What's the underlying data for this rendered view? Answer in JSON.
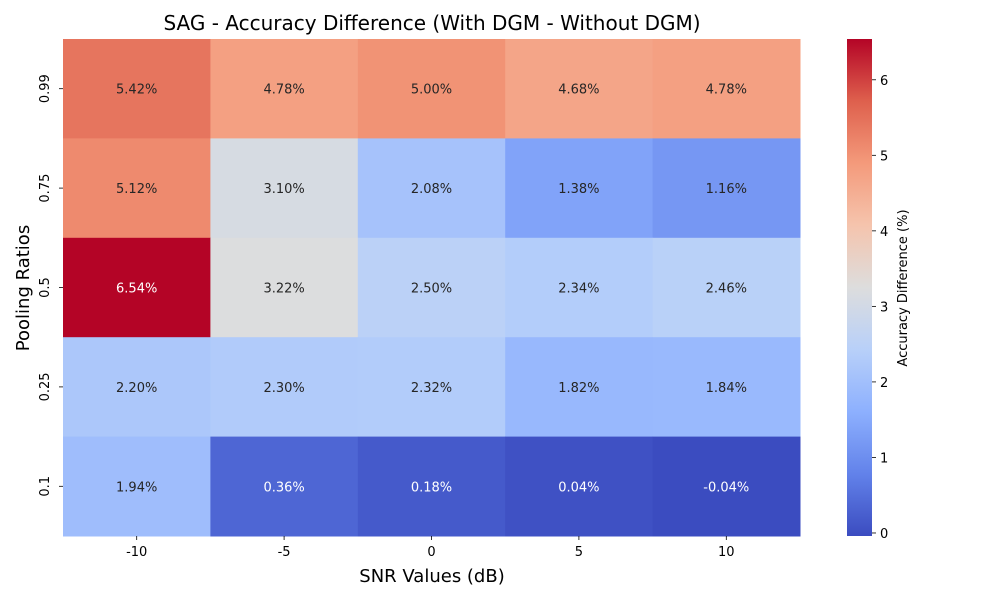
{
  "chart_data": {
    "type": "heatmap",
    "title": "SAG - Accuracy Difference (With DGM - Without DGM)",
    "xlabel": "SNR Values (dB)",
    "ylabel": "Pooling Ratios",
    "x_categories": [
      "-10",
      "-5",
      "0",
      "5",
      "10"
    ],
    "y_categories": [
      "0.99",
      "0.75",
      "0.5",
      "0.25",
      "0.1"
    ],
    "values": [
      [
        5.42,
        4.78,
        5.0,
        4.68,
        4.78
      ],
      [
        5.12,
        3.1,
        2.08,
        1.38,
        1.16
      ],
      [
        6.54,
        3.22,
        2.5,
        2.34,
        2.46
      ],
      [
        2.2,
        2.3,
        2.32,
        1.82,
        1.84
      ],
      [
        1.94,
        0.36,
        0.18,
        0.04,
        -0.04
      ]
    ],
    "value_format": "percent_2dp",
    "colormap": "coolwarm",
    "colorbar": {
      "label": "Accuracy Difference (%)",
      "range": [
        -0.04,
        6.54
      ],
      "ticks": [
        0,
        1,
        2,
        3,
        4,
        5,
        6
      ]
    }
  }
}
